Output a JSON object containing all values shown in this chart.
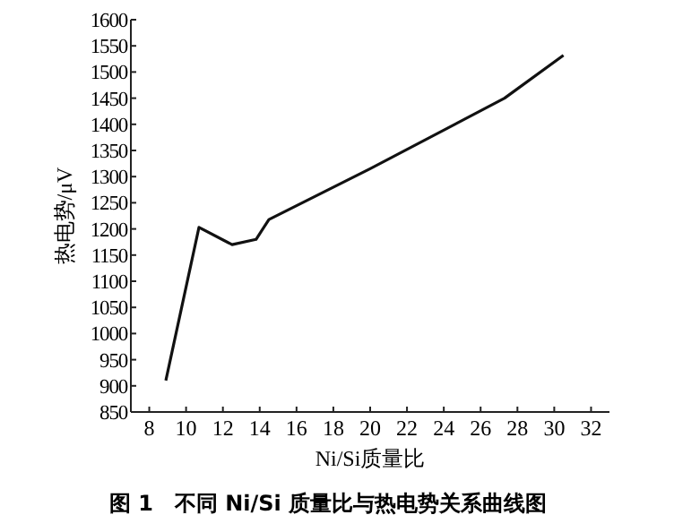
{
  "chart_data": {
    "type": "line",
    "xlabel": "Ni/Si质量比",
    "ylabel": "热电势/μV",
    "annotations": [
      "图 1　不同 Ni/Si 质量比与热电势关系曲线图"
    ],
    "x": [
      8.9,
      10.7,
      12.5,
      13.8,
      14.5,
      20,
      27.3,
      30.5
    ],
    "series": [
      {
        "color": "#111111",
        "values": [
          910,
          1203,
          1170,
          1180,
          1218,
          1315,
          1450,
          1532
        ]
      }
    ],
    "xlim": [
      7,
      33
    ],
    "xticks": [
      8,
      10,
      12,
      14,
      16,
      18,
      20,
      22,
      24,
      26,
      28,
      30,
      32
    ],
    "ylim": [
      850,
      1600
    ],
    "yticks": [
      850,
      900,
      950,
      1000,
      1050,
      1100,
      1150,
      1200,
      1250,
      1300,
      1350,
      1400,
      1450,
      1500,
      1550,
      1600
    ],
    "grid": false,
    "marker": "none",
    "line_style": "solid"
  }
}
